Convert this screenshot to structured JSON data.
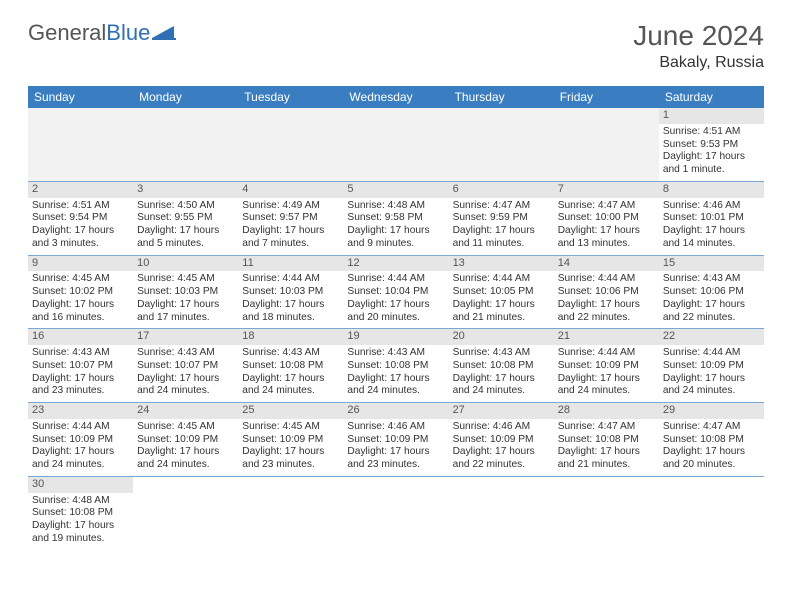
{
  "brand": {
    "part1": "General",
    "part2": "Blue"
  },
  "title": "June 2024",
  "location": "Bakaly, Russia",
  "colors": {
    "header_bg": "#3a7ec1",
    "header_text": "#ffffff",
    "daynum_bg": "#e6e6e6",
    "border": "#7aa8d4",
    "logo_blue": "#2f6fb3"
  },
  "day_headers": [
    "Sunday",
    "Monday",
    "Tuesday",
    "Wednesday",
    "Thursday",
    "Friday",
    "Saturday"
  ],
  "weeks": [
    [
      null,
      null,
      null,
      null,
      null,
      null,
      {
        "n": "1",
        "sr": "Sunrise: 4:51 AM",
        "ss": "Sunset: 9:53 PM",
        "d1": "Daylight: 17 hours",
        "d2": "and 1 minute."
      }
    ],
    [
      {
        "n": "2",
        "sr": "Sunrise: 4:51 AM",
        "ss": "Sunset: 9:54 PM",
        "d1": "Daylight: 17 hours",
        "d2": "and 3 minutes."
      },
      {
        "n": "3",
        "sr": "Sunrise: 4:50 AM",
        "ss": "Sunset: 9:55 PM",
        "d1": "Daylight: 17 hours",
        "d2": "and 5 minutes."
      },
      {
        "n": "4",
        "sr": "Sunrise: 4:49 AM",
        "ss": "Sunset: 9:57 PM",
        "d1": "Daylight: 17 hours",
        "d2": "and 7 minutes."
      },
      {
        "n": "5",
        "sr": "Sunrise: 4:48 AM",
        "ss": "Sunset: 9:58 PM",
        "d1": "Daylight: 17 hours",
        "d2": "and 9 minutes."
      },
      {
        "n": "6",
        "sr": "Sunrise: 4:47 AM",
        "ss": "Sunset: 9:59 PM",
        "d1": "Daylight: 17 hours",
        "d2": "and 11 minutes."
      },
      {
        "n": "7",
        "sr": "Sunrise: 4:47 AM",
        "ss": "Sunset: 10:00 PM",
        "d1": "Daylight: 17 hours",
        "d2": "and 13 minutes."
      },
      {
        "n": "8",
        "sr": "Sunrise: 4:46 AM",
        "ss": "Sunset: 10:01 PM",
        "d1": "Daylight: 17 hours",
        "d2": "and 14 minutes."
      }
    ],
    [
      {
        "n": "9",
        "sr": "Sunrise: 4:45 AM",
        "ss": "Sunset: 10:02 PM",
        "d1": "Daylight: 17 hours",
        "d2": "and 16 minutes."
      },
      {
        "n": "10",
        "sr": "Sunrise: 4:45 AM",
        "ss": "Sunset: 10:03 PM",
        "d1": "Daylight: 17 hours",
        "d2": "and 17 minutes."
      },
      {
        "n": "11",
        "sr": "Sunrise: 4:44 AM",
        "ss": "Sunset: 10:03 PM",
        "d1": "Daylight: 17 hours",
        "d2": "and 18 minutes."
      },
      {
        "n": "12",
        "sr": "Sunrise: 4:44 AM",
        "ss": "Sunset: 10:04 PM",
        "d1": "Daylight: 17 hours",
        "d2": "and 20 minutes."
      },
      {
        "n": "13",
        "sr": "Sunrise: 4:44 AM",
        "ss": "Sunset: 10:05 PM",
        "d1": "Daylight: 17 hours",
        "d2": "and 21 minutes."
      },
      {
        "n": "14",
        "sr": "Sunrise: 4:44 AM",
        "ss": "Sunset: 10:06 PM",
        "d1": "Daylight: 17 hours",
        "d2": "and 22 minutes."
      },
      {
        "n": "15",
        "sr": "Sunrise: 4:43 AM",
        "ss": "Sunset: 10:06 PM",
        "d1": "Daylight: 17 hours",
        "d2": "and 22 minutes."
      }
    ],
    [
      {
        "n": "16",
        "sr": "Sunrise: 4:43 AM",
        "ss": "Sunset: 10:07 PM",
        "d1": "Daylight: 17 hours",
        "d2": "and 23 minutes."
      },
      {
        "n": "17",
        "sr": "Sunrise: 4:43 AM",
        "ss": "Sunset: 10:07 PM",
        "d1": "Daylight: 17 hours",
        "d2": "and 24 minutes."
      },
      {
        "n": "18",
        "sr": "Sunrise: 4:43 AM",
        "ss": "Sunset: 10:08 PM",
        "d1": "Daylight: 17 hours",
        "d2": "and 24 minutes."
      },
      {
        "n": "19",
        "sr": "Sunrise: 4:43 AM",
        "ss": "Sunset: 10:08 PM",
        "d1": "Daylight: 17 hours",
        "d2": "and 24 minutes."
      },
      {
        "n": "20",
        "sr": "Sunrise: 4:43 AM",
        "ss": "Sunset: 10:08 PM",
        "d1": "Daylight: 17 hours",
        "d2": "and 24 minutes."
      },
      {
        "n": "21",
        "sr": "Sunrise: 4:44 AM",
        "ss": "Sunset: 10:09 PM",
        "d1": "Daylight: 17 hours",
        "d2": "and 24 minutes."
      },
      {
        "n": "22",
        "sr": "Sunrise: 4:44 AM",
        "ss": "Sunset: 10:09 PM",
        "d1": "Daylight: 17 hours",
        "d2": "and 24 minutes."
      }
    ],
    [
      {
        "n": "23",
        "sr": "Sunrise: 4:44 AM",
        "ss": "Sunset: 10:09 PM",
        "d1": "Daylight: 17 hours",
        "d2": "and 24 minutes."
      },
      {
        "n": "24",
        "sr": "Sunrise: 4:45 AM",
        "ss": "Sunset: 10:09 PM",
        "d1": "Daylight: 17 hours",
        "d2": "and 24 minutes."
      },
      {
        "n": "25",
        "sr": "Sunrise: 4:45 AM",
        "ss": "Sunset: 10:09 PM",
        "d1": "Daylight: 17 hours",
        "d2": "and 23 minutes."
      },
      {
        "n": "26",
        "sr": "Sunrise: 4:46 AM",
        "ss": "Sunset: 10:09 PM",
        "d1": "Daylight: 17 hours",
        "d2": "and 23 minutes."
      },
      {
        "n": "27",
        "sr": "Sunrise: 4:46 AM",
        "ss": "Sunset: 10:09 PM",
        "d1": "Daylight: 17 hours",
        "d2": "and 22 minutes."
      },
      {
        "n": "28",
        "sr": "Sunrise: 4:47 AM",
        "ss": "Sunset: 10:08 PM",
        "d1": "Daylight: 17 hours",
        "d2": "and 21 minutes."
      },
      {
        "n": "29",
        "sr": "Sunrise: 4:47 AM",
        "ss": "Sunset: 10:08 PM",
        "d1": "Daylight: 17 hours",
        "d2": "and 20 minutes."
      }
    ],
    [
      {
        "n": "30",
        "sr": "Sunrise: 4:48 AM",
        "ss": "Sunset: 10:08 PM",
        "d1": "Daylight: 17 hours",
        "d2": "and 19 minutes."
      },
      null,
      null,
      null,
      null,
      null,
      null
    ]
  ]
}
